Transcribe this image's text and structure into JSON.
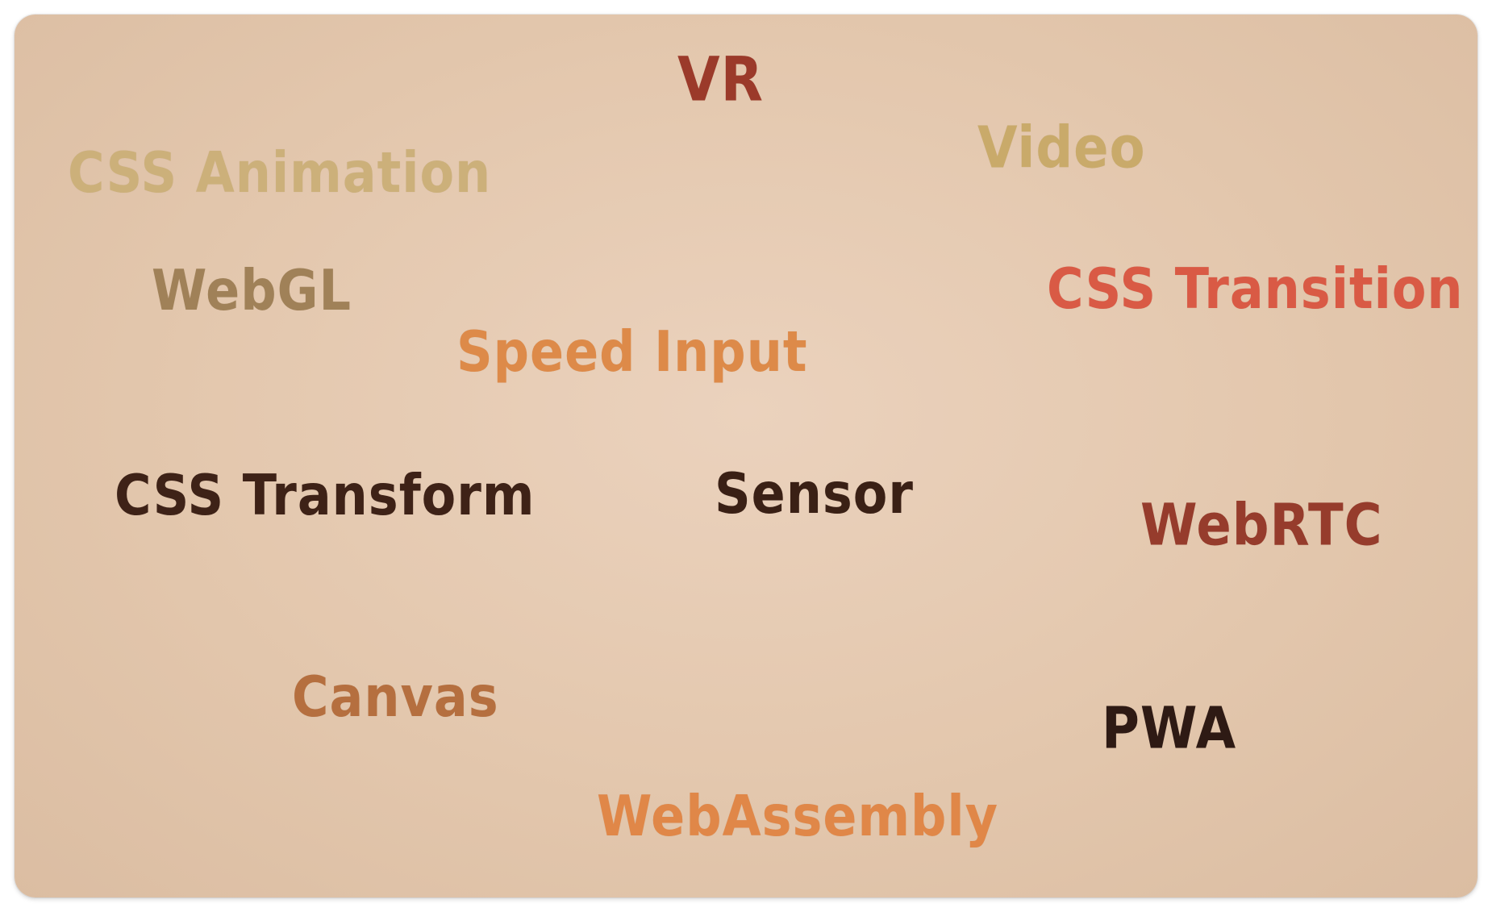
{
  "words": [
    {
      "text": "VR",
      "color": "#9b3a2a"
    },
    {
      "text": "Video",
      "color": "#c9aa6a"
    },
    {
      "text": "CSS Animation",
      "color": "#ccb07a"
    },
    {
      "text": "WebGL",
      "color": "#a08158"
    },
    {
      "text": "CSS Transition",
      "color": "#d95a45"
    },
    {
      "text": "Speed Input",
      "color": "#dd8a49"
    },
    {
      "text": "CSS Transform",
      "color": "#3e2217"
    },
    {
      "text": "Sensor",
      "color": "#3a2015"
    },
    {
      "text": "WebRTC",
      "color": "#963c2c"
    },
    {
      "text": "Canvas",
      "color": "#b56f3f"
    },
    {
      "text": "PWA",
      "color": "#2e1a14"
    },
    {
      "text": "WebAssembly",
      "color": "#e08748"
    }
  ]
}
